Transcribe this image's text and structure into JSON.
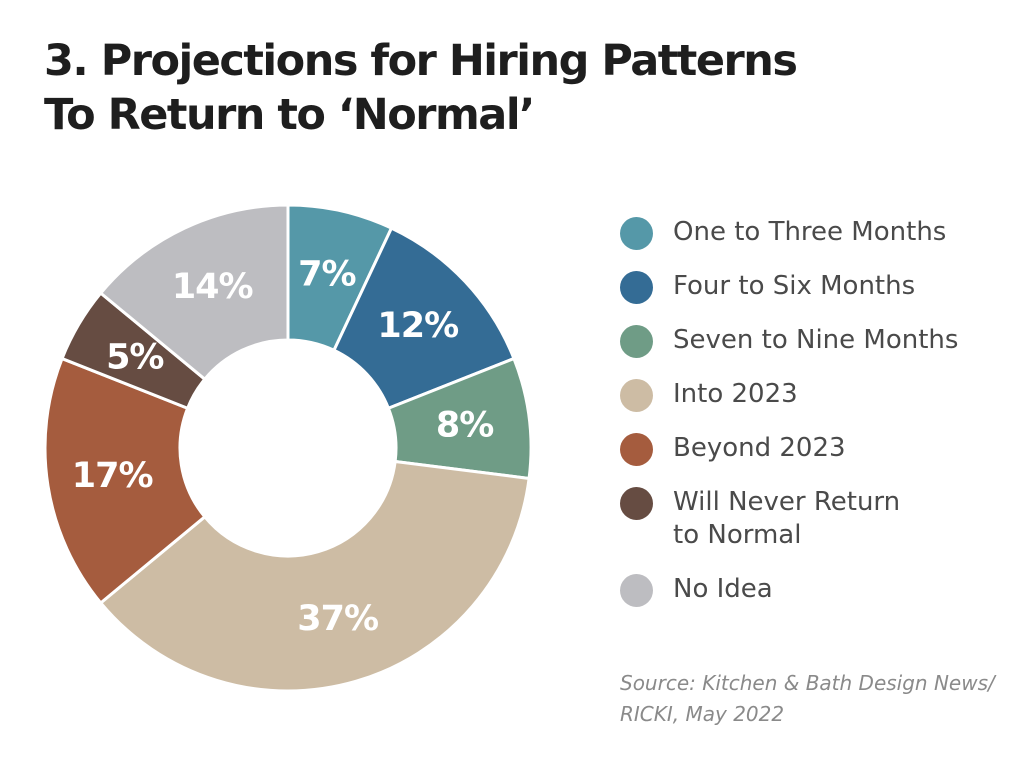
{
  "title": {
    "line1": "3. Projections for Hiring Patterns",
    "line2": "To Return to ‘Normal’"
  },
  "chart_data": {
    "type": "pie",
    "style": "donut",
    "legend_position": "right",
    "categories": [
      "One to Three Months",
      "Four to Six Months",
      "Seven to Nine Months",
      "Into 2023",
      "Beyond 2023",
      "Will Never Return\nto Normal",
      "No Idea"
    ],
    "values": [
      7,
      12,
      8,
      37,
      17,
      5,
      14
    ],
    "value_labels": [
      "7%",
      "12%",
      "8%",
      "37%",
      "17%",
      "5%",
      "14%"
    ],
    "colors": [
      "#5598a8",
      "#346c95",
      "#6f9c86",
      "#cdbca4",
      "#a55c3e",
      "#664c42",
      "#bdbdc1"
    ]
  },
  "source": "Source: Kitchen & Bath Design News/\nRICKI, May 2022"
}
